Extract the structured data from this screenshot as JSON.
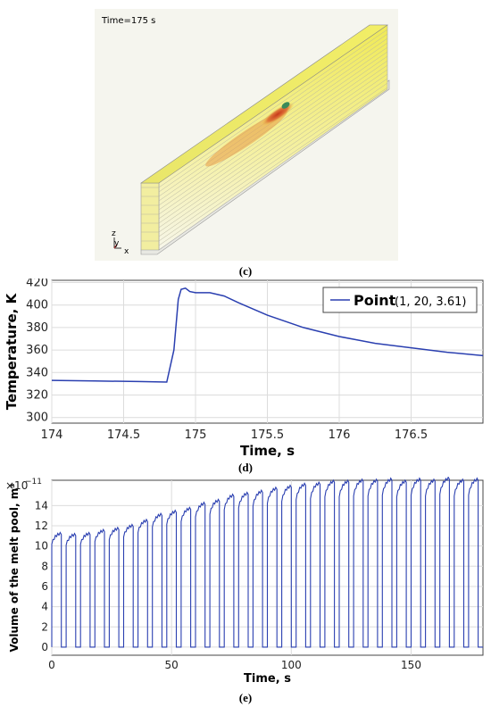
{
  "panel_c": {
    "time_label": "Time=175 s",
    "caption": "(c)",
    "axis_triad": {
      "z": "z",
      "y": "y",
      "x": "x"
    }
  },
  "chart_data": [
    {
      "type": "line",
      "caption": "(d)",
      "xlabel": "Time, s",
      "ylabel": "Temperature, K",
      "xlim": [
        174,
        177
      ],
      "ylim": [
        295,
        422
      ],
      "xticks": [
        "174",
        "174.5",
        "175",
        "175.5",
        "176",
        "176.5"
      ],
      "yticks": [
        "300",
        "320",
        "340",
        "360",
        "380",
        "400",
        "420"
      ],
      "grid": true,
      "legend_position": "top-right",
      "series": [
        {
          "name": "Point",
          "legend_suffix": "(1, 20, 3.61)",
          "color": "#2a3fb0",
          "x": [
            174,
            174.3,
            174.6,
            174.8,
            174.85,
            174.88,
            174.9,
            174.93,
            174.96,
            175.0,
            175.1,
            175.2,
            175.3,
            175.5,
            175.75,
            176.0,
            176.25,
            176.5,
            176.75,
            177
          ],
          "y": [
            333,
            332.5,
            332,
            331.5,
            360,
            405,
            414,
            415,
            412,
            411,
            411,
            408,
            402,
            391,
            380,
            372,
            366,
            362,
            358,
            355
          ]
        }
      ]
    },
    {
      "type": "line",
      "caption": "(e)",
      "xlabel": "Time, s",
      "ylabel": "Volume of the melt pool, m³",
      "y_scale_label": "×10",
      "y_scale_exp": "−11",
      "xlim": [
        0,
        180
      ],
      "ylim": [
        -0.8,
        16.5
      ],
      "xticks": [
        "0",
        "50",
        "100",
        "150"
      ],
      "yticks": [
        "0",
        "2",
        "4",
        "6",
        "8",
        "10",
        "12",
        "14"
      ],
      "grid": true,
      "color": "#2a3fb0",
      "period_s": 6,
      "off_duration_s": 2,
      "pulses": [
        {
          "start": 0,
          "end": 4,
          "plateau": 11.3
        },
        {
          "start": 6,
          "end": 10,
          "plateau": 11.2
        },
        {
          "start": 12,
          "end": 16,
          "plateau": 11.3
        },
        {
          "start": 18,
          "end": 22,
          "plateau": 11.6
        },
        {
          "start": 24,
          "end": 28,
          "plateau": 11.8
        },
        {
          "start": 30,
          "end": 34,
          "plateau": 12.1
        },
        {
          "start": 36,
          "end": 40,
          "plateau": 12.6
        },
        {
          "start": 42,
          "end": 46,
          "plateau": 13.2
        },
        {
          "start": 48,
          "end": 52,
          "plateau": 13.5
        },
        {
          "start": 54,
          "end": 58,
          "plateau": 13.8
        },
        {
          "start": 60,
          "end": 64,
          "plateau": 14.3
        },
        {
          "start": 66,
          "end": 70,
          "plateau": 14.6
        },
        {
          "start": 72,
          "end": 76,
          "plateau": 15.1
        },
        {
          "start": 78,
          "end": 82,
          "plateau": 15.3
        },
        {
          "start": 84,
          "end": 88,
          "plateau": 15.5
        },
        {
          "start": 90,
          "end": 94,
          "plateau": 15.8
        },
        {
          "start": 96,
          "end": 100,
          "plateau": 16.0
        },
        {
          "start": 102,
          "end": 106,
          "plateau": 16.2
        },
        {
          "start": 108,
          "end": 112,
          "plateau": 16.3
        },
        {
          "start": 114,
          "end": 118,
          "plateau": 16.5
        },
        {
          "start": 120,
          "end": 124,
          "plateau": 16.5
        },
        {
          "start": 126,
          "end": 130,
          "plateau": 16.6
        },
        {
          "start": 132,
          "end": 136,
          "plateau": 16.6
        },
        {
          "start": 138,
          "end": 142,
          "plateau": 16.7
        },
        {
          "start": 144,
          "end": 148,
          "plateau": 16.5
        },
        {
          "start": 150,
          "end": 154,
          "plateau": 16.7
        },
        {
          "start": 156,
          "end": 160,
          "plateau": 16.6
        },
        {
          "start": 162,
          "end": 166,
          "plateau": 16.8
        },
        {
          "start": 168,
          "end": 172,
          "plateau": 16.6
        },
        {
          "start": 174,
          "end": 178,
          "plateau": 16.7
        }
      ]
    }
  ]
}
